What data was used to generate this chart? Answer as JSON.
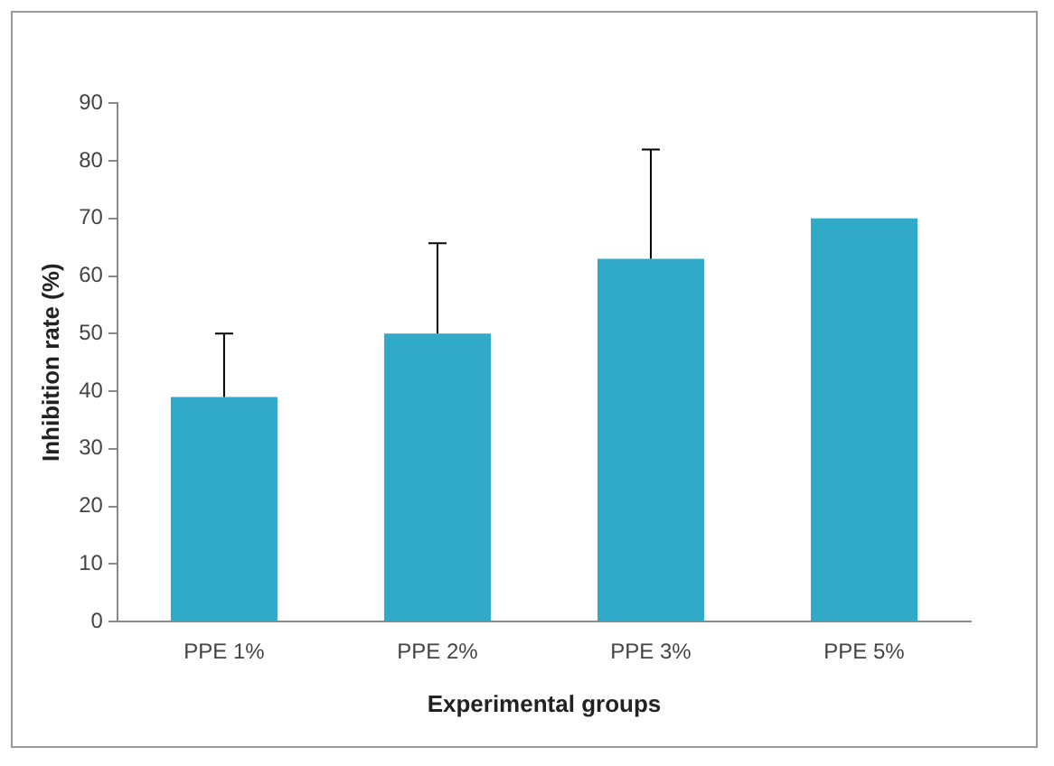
{
  "chart_data": {
    "type": "bar",
    "xlabel": "Experimental groups",
    "ylabel": "Inhibition rate (%)",
    "categories": [
      "PPE 1%",
      "PPE 2%",
      "PPE 3%",
      "PPE 5%"
    ],
    "values": [
      39,
      50,
      63,
      70
    ],
    "errors": [
      [
        39,
        50
      ],
      [
        50,
        65.7
      ],
      [
        63,
        82
      ],
      null
    ],
    "color": "#31a9c9",
    "ylim": [
      0,
      90
    ],
    "yticks": [
      0,
      10,
      20,
      30,
      40,
      50,
      60,
      70,
      80,
      90
    ],
    "grid": false
  }
}
